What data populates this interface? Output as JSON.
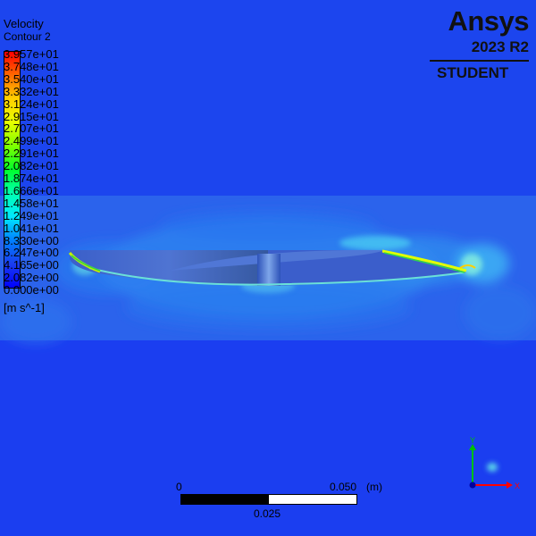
{
  "legend": {
    "title": "Velocity",
    "subtitle": "Contour 2",
    "ticks": [
      "3.957e+01",
      "3.748e+01",
      "3.540e+01",
      "3.332e+01",
      "3.124e+01",
      "2.915e+01",
      "2.707e+01",
      "2.499e+01",
      "2.291e+01",
      "2.082e+01",
      "1.874e+01",
      "1.666e+01",
      "1.458e+01",
      "1.249e+01",
      "1.041e+01",
      "8.330e+00",
      "6.247e+00",
      "4.165e+00",
      "2.082e+00",
      "0.000e+00"
    ],
    "unit": "[m s^-1]",
    "colors": [
      "#ff0000",
      "#ff6a00",
      "#ffd000",
      "#e6ff00",
      "#7dff00",
      "#00ff2a",
      "#00ffb0",
      "#00e8ff",
      "#0080ff",
      "#1a3cf0",
      "#0000ff"
    ]
  },
  "logo": {
    "wordmark": "Ansys",
    "version": "2023 R2",
    "edition": "STUDENT"
  },
  "scale": {
    "left_label": "0",
    "right_label": "0.050",
    "unit": "(m)",
    "mid_label": "0.025"
  },
  "axes": {
    "y_label": "Y",
    "x_label": "X",
    "y_color": "#00c000",
    "x_color": "#ff0000"
  },
  "field": {
    "background_color": "#1a3cf0",
    "airfoil_color": "#3f62c4"
  }
}
